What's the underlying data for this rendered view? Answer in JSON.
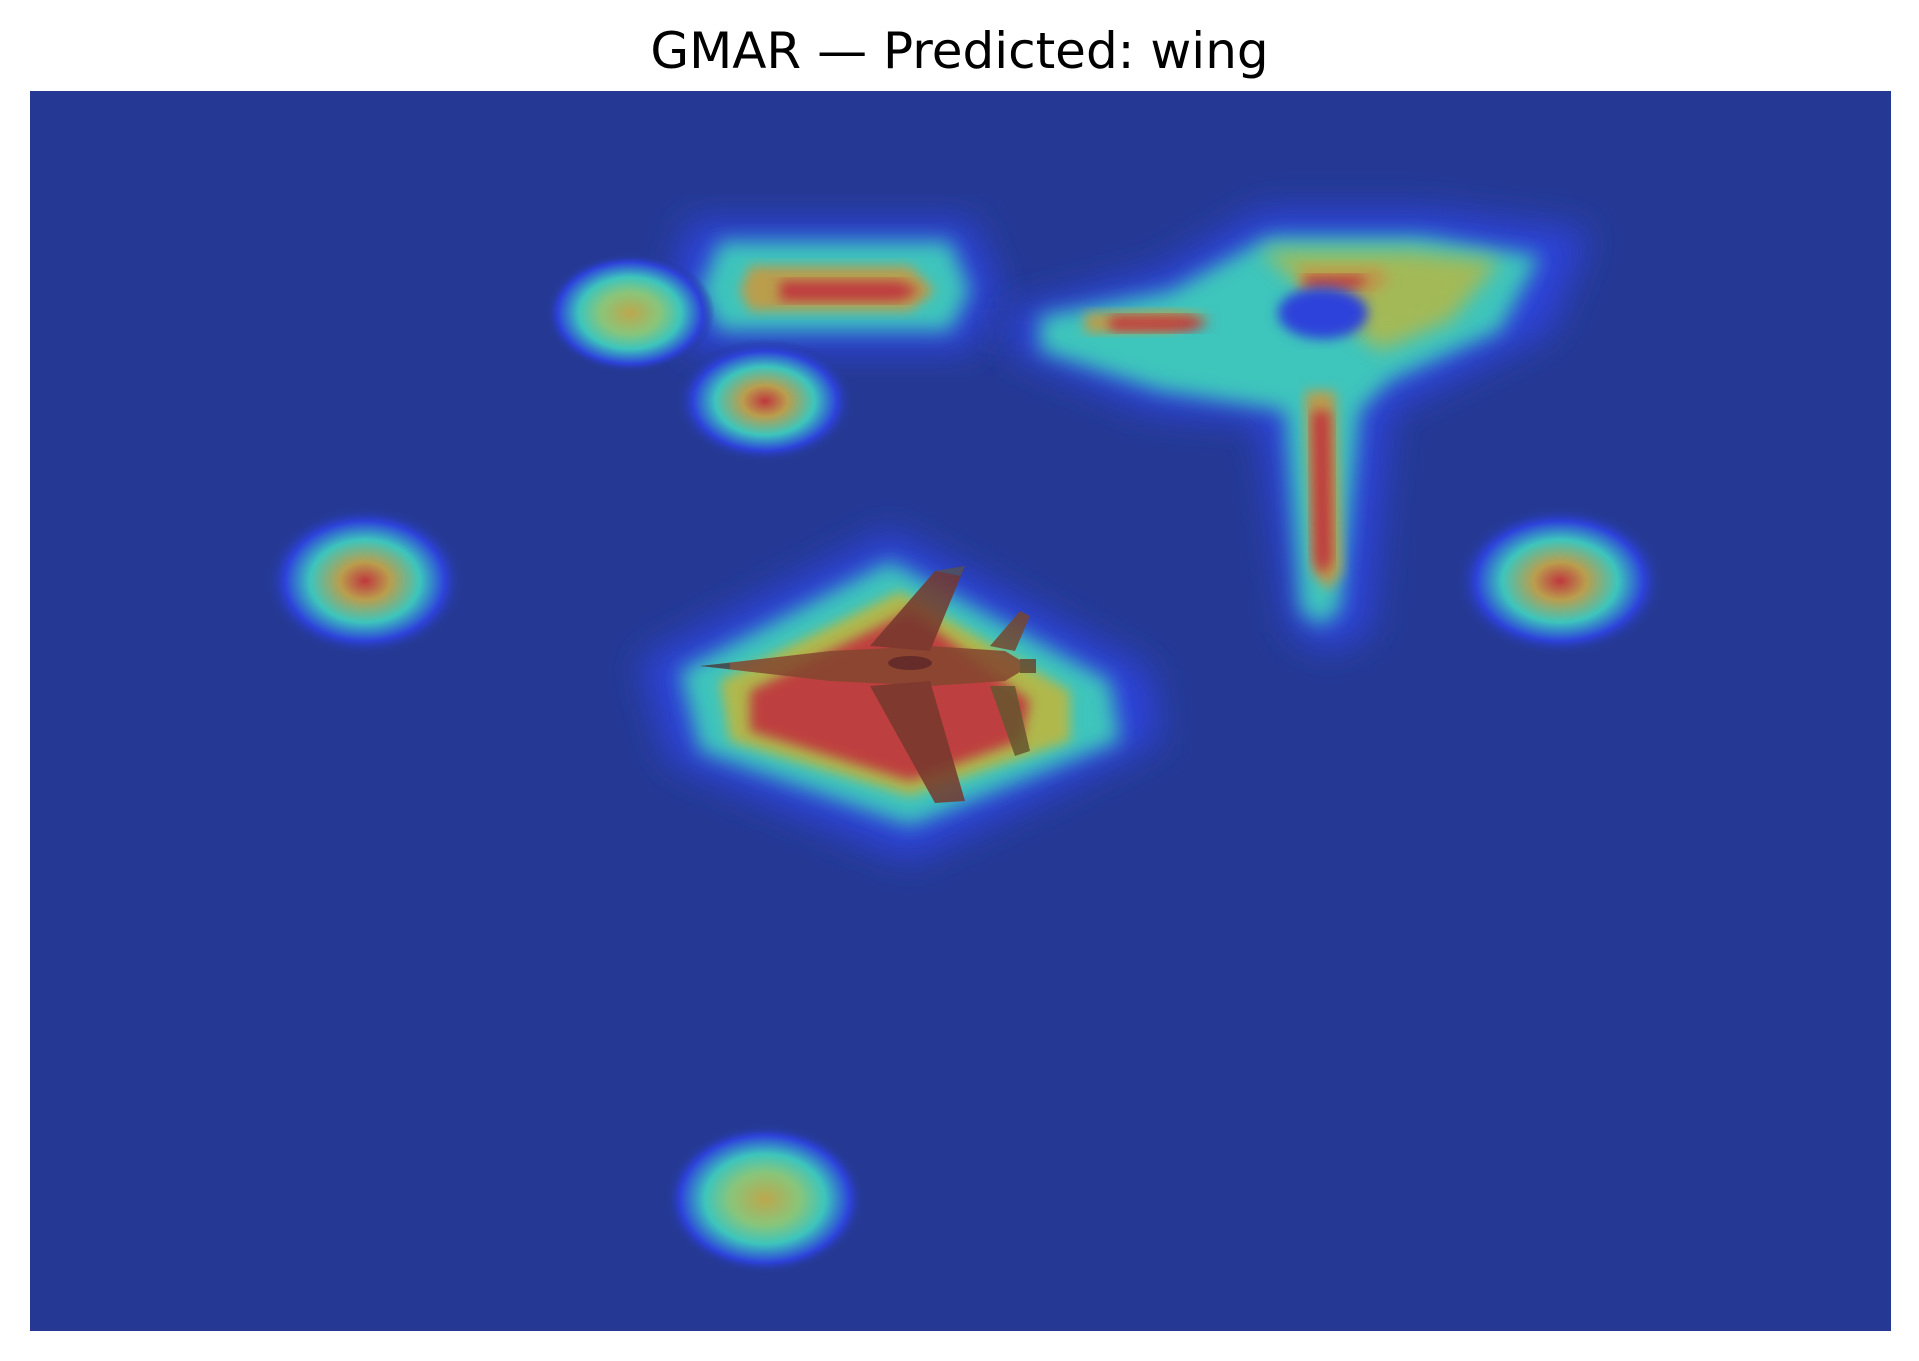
{
  "figure": {
    "title": "GMAR — Predicted: wing"
  },
  "image": {
    "subject": "fighter-jet",
    "overlay": "attention-heatmap",
    "colormap": "jet",
    "colors": {
      "background_low": "#243a92",
      "low_mid": "#2f3fd8",
      "mid": "#33c3c9",
      "mid_high": "#b8c24a",
      "high": "#c93a3a"
    }
  }
}
